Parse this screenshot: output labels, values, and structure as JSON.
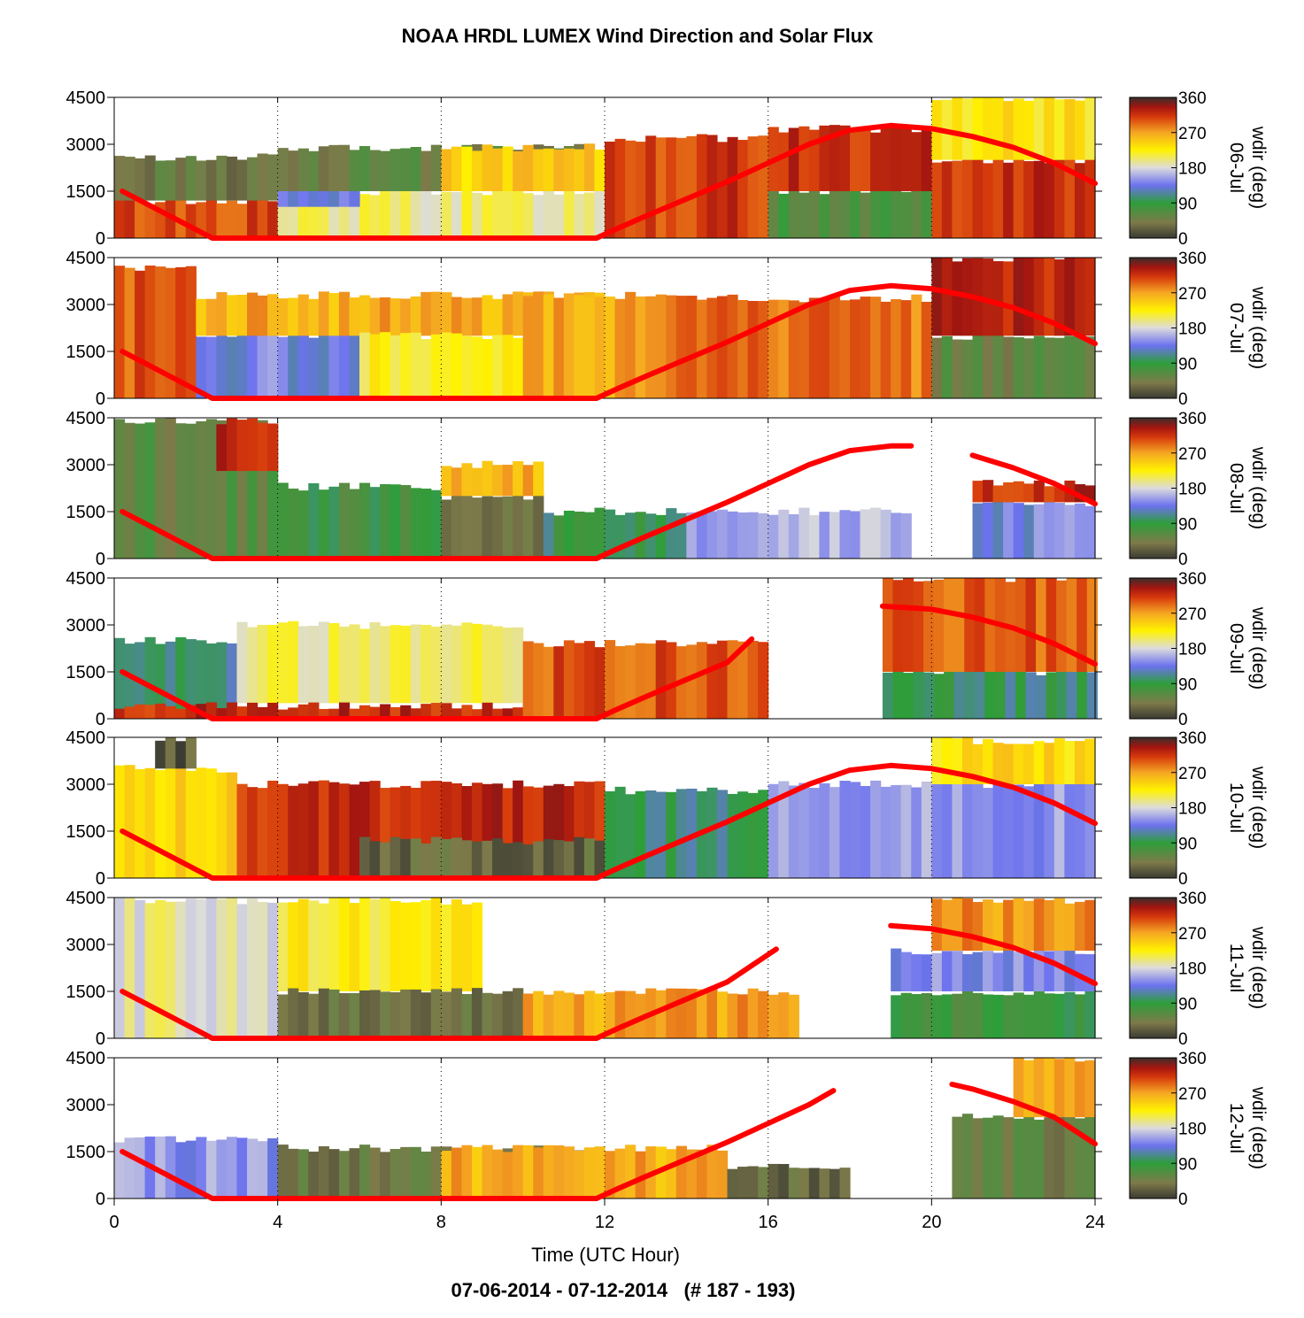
{
  "figure": {
    "title": "NOAA HRDL LUMEX Wind Direction and Solar Flux",
    "footer": "07-06-2014 - 07-12-2014   (# 187 - 193)"
  },
  "chart_data": {
    "type": "heatmap",
    "title": "NOAA HRDL LUMEX Wind Direction and Solar Flux",
    "xlabel": "Time (UTC Hour)",
    "xlim": [
      0,
      24
    ],
    "x_ticks": [
      "0",
      "4",
      "8",
      "12",
      "16",
      "20",
      "24"
    ],
    "ylim": [
      0,
      4500
    ],
    "y_ticks": [
      "0",
      "1500",
      "3000",
      "4500"
    ],
    "colorbar": {
      "label": "wdir (deg)",
      "range": [
        0,
        360
      ],
      "ticks": [
        "0",
        "90",
        "180",
        "270",
        "360"
      ],
      "stops": [
        {
          "v": 0,
          "c": "#3a3a32"
        },
        {
          "v": 40,
          "c": "#7d7a4a"
        },
        {
          "v": 90,
          "c": "#2e9e3a"
        },
        {
          "v": 135,
          "c": "#6c72ee"
        },
        {
          "v": 180,
          "c": "#dcdcdc"
        },
        {
          "v": 225,
          "c": "#fff200"
        },
        {
          "v": 270,
          "c": "#f5a623"
        },
        {
          "v": 310,
          "c": "#d63a0c"
        },
        {
          "v": 335,
          "c": "#a31510"
        },
        {
          "v": 360,
          "c": "#3a2f2a"
        }
      ]
    },
    "solar_flux_color": "#ff0000",
    "grid": "dotted vertical lines at 4-hour ticks",
    "panels": [
      {
        "date": "06-Jul",
        "side_label": "06-Jul",
        "dataGaps": [],
        "solar": [
          [
            0.2,
            1500
          ],
          [
            2.4,
            0
          ],
          [
            11.8,
            0
          ],
          [
            12.3,
            300
          ],
          [
            13,
            700
          ],
          [
            14,
            1250
          ],
          [
            15,
            1800
          ],
          [
            16,
            2400
          ],
          [
            17,
            3000
          ],
          [
            18,
            3450
          ],
          [
            19,
            3600
          ],
          [
            20,
            3500
          ],
          [
            21,
            3250
          ],
          [
            22,
            2900
          ],
          [
            23,
            2400
          ],
          [
            24,
            1750
          ]
        ],
        "regimes": [
          {
            "x": [
              0,
              4
            ],
            "h": [
              0,
              1200
            ],
            "wdir": 305
          },
          {
            "x": [
              0,
              4
            ],
            "h": [
              1200,
              2600
            ],
            "wdir": 40
          },
          {
            "x": [
              4,
              12
            ],
            "h": [
              0,
              1500
            ],
            "wdir": 200
          },
          {
            "x": [
              4,
              6
            ],
            "h": [
              1000,
              2000
            ],
            "wdir": 140
          },
          {
            "x": [
              4,
              12
            ],
            "h": [
              1500,
              2900
            ],
            "wdir": 50
          },
          {
            "x": [
              8,
              12
            ],
            "h": [
              1500,
              2900
            ],
            "wdir": 245
          },
          {
            "x": [
              12,
              16
            ],
            "h": [
              0,
              3200
            ],
            "wdir": 310
          },
          {
            "x": [
              16,
              20
            ],
            "h": [
              0,
              1500
            ],
            "wdir": 70
          },
          {
            "x": [
              16,
              20
            ],
            "h": [
              1500,
              3500
            ],
            "wdir": 315
          },
          {
            "x": [
              20,
              24
            ],
            "h": [
              0,
              2500
            ],
            "wdir": 320
          },
          {
            "x": [
              20,
              24
            ],
            "h": [
              2500,
              4500
            ],
            "wdir": 230
          }
        ]
      },
      {
        "date": "07-Jul",
        "side_label": "07-Jul",
        "dataGaps": [],
        "solar": [
          [
            0.2,
            1500
          ],
          [
            2.4,
            0
          ],
          [
            11.8,
            0
          ],
          [
            12.3,
            300
          ],
          [
            13,
            700
          ],
          [
            14,
            1250
          ],
          [
            15,
            1800
          ],
          [
            16,
            2400
          ],
          [
            17,
            3000
          ],
          [
            18,
            3450
          ],
          [
            19,
            3600
          ],
          [
            20,
            3500
          ],
          [
            21,
            3250
          ],
          [
            22,
            2900
          ],
          [
            23,
            2400
          ],
          [
            24,
            1750
          ]
        ],
        "regimes": [
          {
            "x": [
              0,
              2
            ],
            "h": [
              0,
              4200
            ],
            "wdir": 300
          },
          {
            "x": [
              2,
              6
            ],
            "h": [
              0,
              2000
            ],
            "wdir": 140
          },
          {
            "x": [
              2,
              12
            ],
            "h": [
              2000,
              3300
            ],
            "wdir": 265
          },
          {
            "x": [
              6,
              10
            ],
            "h": [
              0,
              2000
            ],
            "wdir": 220
          },
          {
            "x": [
              10,
              13
            ],
            "h": [
              0,
              3300
            ],
            "wdir": 270
          },
          {
            "x": [
              13,
              20
            ],
            "h": [
              0,
              3200
            ],
            "wdir": 290
          },
          {
            "x": [
              20,
              24
            ],
            "h": [
              0,
              2000
            ],
            "wdir": 55
          },
          {
            "x": [
              20,
              24
            ],
            "h": [
              2000,
              4500
            ],
            "wdir": 320
          }
        ]
      },
      {
        "date": "08-Jul",
        "side_label": "08-Jul",
        "dataGaps": [
          [
            19.5,
            21
          ]
        ],
        "solar": [
          [
            0.2,
            1500
          ],
          [
            2.4,
            0
          ],
          [
            11.8,
            0
          ],
          [
            12.3,
            300
          ],
          [
            13,
            700
          ],
          [
            14,
            1250
          ],
          [
            15,
            1800
          ],
          [
            16,
            2400
          ],
          [
            17,
            3000
          ],
          [
            18,
            3450
          ],
          [
            19,
            3600
          ],
          [
            19.5,
            3600
          ]
        ],
        "solar2": [
          [
            21,
            3300
          ],
          [
            22,
            2900
          ],
          [
            23,
            2400
          ],
          [
            24,
            1750
          ]
        ],
        "regimes": [
          {
            "x": [
              0,
              4
            ],
            "h": [
              0,
              4400
            ],
            "wdir": 60
          },
          {
            "x": [
              2.5,
              4
            ],
            "h": [
              2800,
              4400
            ],
            "wdir": 325
          },
          {
            "x": [
              4,
              8
            ],
            "h": [
              0,
              2300
            ],
            "wdir": 80
          },
          {
            "x": [
              8,
              10.5
            ],
            "h": [
              0,
              2000
            ],
            "wdir": 45
          },
          {
            "x": [
              8,
              10.5
            ],
            "h": [
              2000,
              3000
            ],
            "wdir": 265
          },
          {
            "x": [
              10.5,
              14
            ],
            "h": [
              0,
              1500
            ],
            "wdir": 95
          },
          {
            "x": [
              14,
              19.5
            ],
            "h": [
              0,
              1500
            ],
            "wdir": 160
          },
          {
            "x": [
              21,
              24
            ],
            "h": [
              0,
              1800
            ],
            "wdir": 140
          },
          {
            "x": [
              21,
              24
            ],
            "h": [
              1800,
              2400
            ],
            "wdir": 320
          }
        ]
      },
      {
        "date": "09-Jul",
        "side_label": "09-Jul",
        "dataGaps": [
          [
            16,
            18.8
          ]
        ],
        "solar": [
          [
            0.2,
            1500
          ],
          [
            2.4,
            0
          ],
          [
            11.8,
            0
          ],
          [
            12.3,
            300
          ],
          [
            13,
            700
          ],
          [
            14,
            1250
          ],
          [
            15,
            1800
          ],
          [
            15.6,
            2550
          ]
        ],
        "solar2": [
          [
            18.8,
            3600
          ],
          [
            20,
            3500
          ],
          [
            21,
            3250
          ],
          [
            22,
            2900
          ],
          [
            23,
            2400
          ],
          [
            24,
            1750
          ]
        ],
        "regimes": [
          {
            "x": [
              0,
              3
            ],
            "h": [
              0,
              2500
            ],
            "wdir": 110
          },
          {
            "x": [
              3,
              10
            ],
            "h": [
              500,
              3000
            ],
            "wdir": 200
          },
          {
            "x": [
              0,
              12
            ],
            "h": [
              0,
              400
            ],
            "wdir": 320
          },
          {
            "x": [
              10,
              16
            ],
            "h": [
              0,
              2400
            ],
            "wdir": 300
          },
          {
            "x": [
              18.8,
              24
            ],
            "h": [
              0,
              1500
            ],
            "wdir": 100
          },
          {
            "x": [
              18.8,
              24
            ],
            "h": [
              1500,
              4500
            ],
            "wdir": 300
          }
        ]
      },
      {
        "date": "10-Jul",
        "side_label": "10-Jul",
        "dataGaps": [],
        "solar": [
          [
            0.2,
            1500
          ],
          [
            2.4,
            0
          ],
          [
            11.8,
            0
          ],
          [
            12.3,
            300
          ],
          [
            13,
            700
          ],
          [
            14,
            1250
          ],
          [
            15,
            1800
          ],
          [
            16,
            2400
          ],
          [
            17,
            3000
          ],
          [
            18,
            3450
          ],
          [
            19,
            3600
          ],
          [
            20,
            3500
          ],
          [
            21,
            3250
          ],
          [
            22,
            2900
          ],
          [
            23,
            2400
          ],
          [
            24,
            1750
          ]
        ],
        "regimes": [
          {
            "x": [
              0,
              3
            ],
            "h": [
              0,
              3500
            ],
            "wdir": 245
          },
          {
            "x": [
              1,
              2
            ],
            "h": [
              3500,
              4400
            ],
            "wdir": 20
          },
          {
            "x": [
              3,
              12
            ],
            "h": [
              0,
              3000
            ],
            "wdir": 320
          },
          {
            "x": [
              6,
              12
            ],
            "h": [
              0,
              1200
            ],
            "wdir": 30
          },
          {
            "x": [
              12,
              16
            ],
            "h": [
              0,
              2800
            ],
            "wdir": 100
          },
          {
            "x": [
              16,
              24
            ],
            "h": [
              0,
              3000
            ],
            "wdir": 150
          },
          {
            "x": [
              20,
              24
            ],
            "h": [
              3000,
              4400
            ],
            "wdir": 235
          }
        ]
      },
      {
        "date": "11-Jul",
        "side_label": "11-Jul",
        "dataGaps": [
          [
            16.6,
            19
          ]
        ],
        "solar": [
          [
            0.2,
            1500
          ],
          [
            2.4,
            0
          ],
          [
            11.8,
            0
          ],
          [
            12.3,
            300
          ],
          [
            13,
            700
          ],
          [
            14,
            1250
          ],
          [
            15,
            1800
          ],
          [
            16.2,
            2850
          ]
        ],
        "solar2": [
          [
            19,
            3600
          ],
          [
            20,
            3500
          ],
          [
            21,
            3250
          ],
          [
            22,
            2900
          ],
          [
            23,
            2400
          ],
          [
            24,
            1750
          ]
        ],
        "regimes": [
          {
            "x": [
              0,
              4
            ],
            "h": [
              0,
              4400
            ],
            "wdir": 190
          },
          {
            "x": [
              4,
              9
            ],
            "h": [
              1500,
              4400
            ],
            "wdir": 220
          },
          {
            "x": [
              4,
              10
            ],
            "h": [
              0,
              1500
            ],
            "wdir": 40
          },
          {
            "x": [
              10,
              16.6
            ],
            "h": [
              0,
              1500
            ],
            "wdir": 270
          },
          {
            "x": [
              19,
              24
            ],
            "h": [
              0,
              1500
            ],
            "wdir": 80
          },
          {
            "x": [
              19,
              24
            ],
            "h": [
              1500,
              2800
            ],
            "wdir": 145
          },
          {
            "x": [
              20,
              24
            ],
            "h": [
              2800,
              4400
            ],
            "wdir": 275
          }
        ]
      },
      {
        "date": "12-Jul",
        "side_label": "12-Jul",
        "dataGaps": [
          [
            18,
            20.5
          ]
        ],
        "solar": [
          [
            0.2,
            1500
          ],
          [
            2.4,
            0
          ],
          [
            11.8,
            0
          ],
          [
            12.3,
            300
          ],
          [
            13,
            700
          ],
          [
            14,
            1250
          ],
          [
            15,
            1800
          ],
          [
            16,
            2400
          ],
          [
            17,
            3000
          ],
          [
            17.6,
            3450
          ]
        ],
        "solar2": [
          [
            20.5,
            3650
          ],
          [
            21,
            3500
          ],
          [
            22,
            3100
          ],
          [
            23,
            2600
          ],
          [
            24,
            1750
          ]
        ],
        "regimes": [
          {
            "x": [
              0,
              4
            ],
            "h": [
              0,
              1900
            ],
            "wdir": 150
          },
          {
            "x": [
              4,
              12
            ],
            "h": [
              0,
              1600
            ],
            "wdir": 40
          },
          {
            "x": [
              8,
              15
            ],
            "h": [
              0,
              1600
            ],
            "wdir": 265
          },
          {
            "x": [
              15,
              18
            ],
            "h": [
              0,
              1000
            ],
            "wdir": 30
          },
          {
            "x": [
              20.5,
              24
            ],
            "h": [
              0,
              2600
            ],
            "wdir": 50
          },
          {
            "x": [
              22,
              24
            ],
            "h": [
              2600,
              4500
            ],
            "wdir": 275
          }
        ]
      }
    ]
  }
}
